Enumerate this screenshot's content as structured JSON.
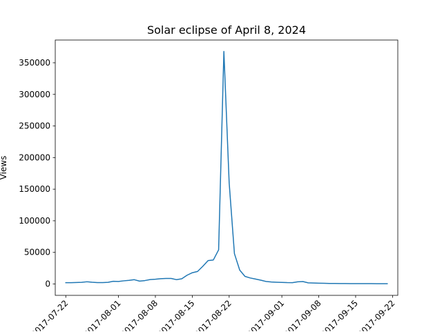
{
  "chart_data": {
    "type": "line",
    "title": "Solar eclipse of April 8, 2024",
    "xlabel": "",
    "ylabel": "Views",
    "xlim": [
      "2017-07-20",
      "2017-09-23"
    ],
    "ylim": [
      -18000,
      386000
    ],
    "grid": false,
    "legend": "none",
    "x_ticks": [
      "2017-07-22",
      "2017-08-01",
      "2017-08-08",
      "2017-08-15",
      "2017-08-22",
      "2017-09-01",
      "2017-09-08",
      "2017-09-15",
      "2017-09-22"
    ],
    "y_ticks": [
      0,
      50000,
      100000,
      150000,
      200000,
      250000,
      300000,
      350000
    ],
    "series": [
      {
        "color": "#1f77b4",
        "x": [
          "2017-07-22",
          "2017-07-23",
          "2017-07-24",
          "2017-07-25",
          "2017-07-26",
          "2017-07-27",
          "2017-07-28",
          "2017-07-29",
          "2017-07-30",
          "2017-07-31",
          "2017-08-01",
          "2017-08-02",
          "2017-08-03",
          "2017-08-04",
          "2017-08-05",
          "2017-08-06",
          "2017-08-07",
          "2017-08-08",
          "2017-08-09",
          "2017-08-10",
          "2017-08-11",
          "2017-08-12",
          "2017-08-13",
          "2017-08-14",
          "2017-08-15",
          "2017-08-16",
          "2017-08-17",
          "2017-08-18",
          "2017-08-19",
          "2017-08-20",
          "2017-08-21",
          "2017-08-22",
          "2017-08-23",
          "2017-08-24",
          "2017-08-25",
          "2017-08-26",
          "2017-08-27",
          "2017-08-28",
          "2017-08-29",
          "2017-08-30",
          "2017-08-31",
          "2017-09-01",
          "2017-09-02",
          "2017-09-03",
          "2017-09-04",
          "2017-09-05",
          "2017-09-06",
          "2017-09-07",
          "2017-09-08",
          "2017-09-09",
          "2017-09-10",
          "2017-09-11",
          "2017-09-12",
          "2017-09-13",
          "2017-09-14",
          "2017-09-15",
          "2017-09-16",
          "2017-09-17",
          "2017-09-18",
          "2017-09-19",
          "2017-09-20",
          "2017-09-21"
        ],
        "y": [
          2000,
          2000,
          2300,
          2600,
          3500,
          2700,
          2200,
          2200,
          2600,
          4200,
          4000,
          5000,
          5700,
          6800,
          4500,
          5400,
          7000,
          7500,
          8300,
          8800,
          8800,
          6900,
          8200,
          13800,
          17800,
          19800,
          28000,
          37000,
          38000,
          54000,
          368000,
          160000,
          48000,
          22000,
          12000,
          9500,
          7800,
          6000,
          4000,
          3200,
          2800,
          2500,
          2200,
          2100,
          3400,
          3800,
          1800,
          1500,
          1300,
          1100,
          900,
          800,
          700,
          650,
          600,
          560,
          540,
          520,
          500,
          480,
          450,
          420
        ]
      }
    ]
  }
}
